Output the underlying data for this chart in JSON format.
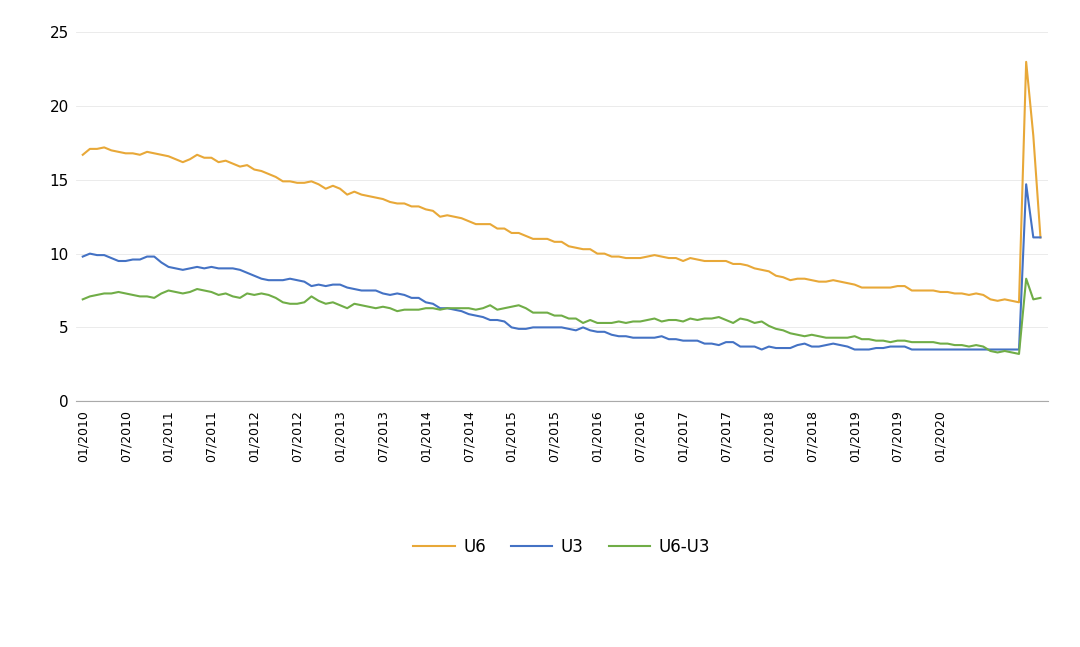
{
  "title": "",
  "u6_color": "#E8A838",
  "u3_color": "#4472C4",
  "diff_color": "#70AD47",
  "background_color": "#FFFFFF",
  "ylim": [
    0,
    25
  ],
  "yticks": [
    0,
    5,
    10,
    15,
    20,
    25
  ],
  "legend_labels": [
    "U6",
    "U3",
    "U6-U3"
  ],
  "u6": [
    16.7,
    17.1,
    17.1,
    17.2,
    17.0,
    16.9,
    16.8,
    16.8,
    16.7,
    16.9,
    16.8,
    16.7,
    16.6,
    16.4,
    16.2,
    16.4,
    16.7,
    16.5,
    16.5,
    16.2,
    16.3,
    16.1,
    15.9,
    16.0,
    15.7,
    15.6,
    15.4,
    15.2,
    14.9,
    14.9,
    14.8,
    14.8,
    14.9,
    14.7,
    14.4,
    14.6,
    14.4,
    14.0,
    14.2,
    14.0,
    13.9,
    13.8,
    13.7,
    13.5,
    13.4,
    13.4,
    13.2,
    13.2,
    13.0,
    12.9,
    12.5,
    12.6,
    12.5,
    12.4,
    12.2,
    12.0,
    12.0,
    12.0,
    11.7,
    11.7,
    11.4,
    11.4,
    11.2,
    11.0,
    11.0,
    11.0,
    10.8,
    10.8,
    10.5,
    10.4,
    10.3,
    10.3,
    10.0,
    10.0,
    9.8,
    9.8,
    9.7,
    9.7,
    9.7,
    9.8,
    9.9,
    9.8,
    9.7,
    9.7,
    9.5,
    9.7,
    9.6,
    9.5,
    9.5,
    9.5,
    9.5,
    9.3,
    9.3,
    9.2,
    9.0,
    8.9,
    8.8,
    8.5,
    8.4,
    8.2,
    8.3,
    8.3,
    8.2,
    8.1,
    8.1,
    8.2,
    8.1,
    8.0,
    7.9,
    7.7,
    7.7,
    7.7,
    7.7,
    7.7,
    7.8,
    7.8,
    7.5,
    7.5,
    7.5,
    7.5,
    7.4,
    7.4,
    7.3,
    7.3,
    7.2,
    7.3,
    7.2,
    6.9,
    6.8,
    6.9,
    6.8,
    6.7,
    23.0,
    18.0,
    11.1
  ],
  "u3": [
    9.8,
    10.0,
    9.9,
    9.9,
    9.7,
    9.5,
    9.5,
    9.6,
    9.6,
    9.8,
    9.8,
    9.4,
    9.1,
    9.0,
    8.9,
    9.0,
    9.1,
    9.0,
    9.1,
    9.0,
    9.0,
    9.0,
    8.9,
    8.7,
    8.5,
    8.3,
    8.2,
    8.2,
    8.2,
    8.3,
    8.2,
    8.1,
    7.8,
    7.9,
    7.8,
    7.9,
    7.9,
    7.7,
    7.6,
    7.5,
    7.5,
    7.5,
    7.3,
    7.2,
    7.3,
    7.2,
    7.0,
    7.0,
    6.7,
    6.6,
    6.3,
    6.3,
    6.2,
    6.1,
    5.9,
    5.8,
    5.7,
    5.5,
    5.5,
    5.4,
    5.0,
    4.9,
    4.9,
    5.0,
    5.0,
    5.0,
    5.0,
    5.0,
    4.9,
    4.8,
    5.0,
    4.8,
    4.7,
    4.7,
    4.5,
    4.4,
    4.4,
    4.3,
    4.3,
    4.3,
    4.3,
    4.4,
    4.2,
    4.2,
    4.1,
    4.1,
    4.1,
    3.9,
    3.9,
    3.8,
    4.0,
    4.0,
    3.7,
    3.7,
    3.7,
    3.5,
    3.7,
    3.6,
    3.6,
    3.6,
    3.8,
    3.9,
    3.7,
    3.7,
    3.8,
    3.9,
    3.8,
    3.7,
    3.5,
    3.5,
    3.5,
    3.6,
    3.6,
    3.7,
    3.7,
    3.7,
    3.5,
    3.5,
    3.5,
    3.5,
    3.5,
    3.5,
    3.5,
    3.5,
    3.5,
    3.5,
    3.5,
    3.5,
    3.5,
    3.5,
    3.5,
    3.5,
    14.7,
    11.1,
    11.1
  ],
  "diff": [
    6.9,
    7.1,
    7.2,
    7.3,
    7.3,
    7.4,
    7.3,
    7.2,
    7.1,
    7.1,
    7.0,
    7.3,
    7.5,
    7.4,
    7.3,
    7.4,
    7.6,
    7.5,
    7.4,
    7.2,
    7.3,
    7.1,
    7.0,
    7.3,
    7.2,
    7.3,
    7.2,
    7.0,
    6.7,
    6.6,
    6.6,
    6.7,
    7.1,
    6.8,
    6.6,
    6.7,
    6.5,
    6.3,
    6.6,
    6.5,
    6.4,
    6.3,
    6.4,
    6.3,
    6.1,
    6.2,
    6.2,
    6.2,
    6.3,
    6.3,
    6.2,
    6.3,
    6.3,
    6.3,
    6.3,
    6.2,
    6.3,
    6.5,
    6.2,
    6.3,
    6.4,
    6.5,
    6.3,
    6.0,
    6.0,
    6.0,
    5.8,
    5.8,
    5.6,
    5.6,
    5.3,
    5.5,
    5.3,
    5.3,
    5.3,
    5.4,
    5.3,
    5.4,
    5.4,
    5.5,
    5.6,
    5.4,
    5.5,
    5.5,
    5.4,
    5.6,
    5.5,
    5.6,
    5.6,
    5.7,
    5.5,
    5.3,
    5.6,
    5.5,
    5.3,
    5.4,
    5.1,
    4.9,
    4.8,
    4.6,
    4.5,
    4.4,
    4.5,
    4.4,
    4.3,
    4.3,
    4.3,
    4.3,
    4.4,
    4.2,
    4.2,
    4.1,
    4.1,
    4.0,
    4.1,
    4.1,
    4.0,
    4.0,
    4.0,
    4.0,
    3.9,
    3.9,
    3.8,
    3.8,
    3.7,
    3.8,
    3.7,
    3.4,
    3.3,
    3.4,
    3.3,
    3.2,
    8.3,
    6.9,
    7.0
  ],
  "xtick_positions": [
    0,
    6,
    12,
    18,
    24,
    30,
    36,
    42,
    48,
    54,
    60,
    66,
    72,
    78,
    84,
    90,
    96,
    102,
    108,
    114,
    120
  ],
  "xtick_labels": [
    "01/2010",
    "07/2010",
    "01/2011",
    "07/2011",
    "01/2012",
    "07/2012",
    "01/2013",
    "07/2013",
    "01/2014",
    "07/2014",
    "01/2015",
    "07/2015",
    "01/2016",
    "07/2016",
    "01/2017",
    "07/2017",
    "01/2018",
    "07/2018",
    "01/2019",
    "07/2019",
    "01/2020"
  ]
}
